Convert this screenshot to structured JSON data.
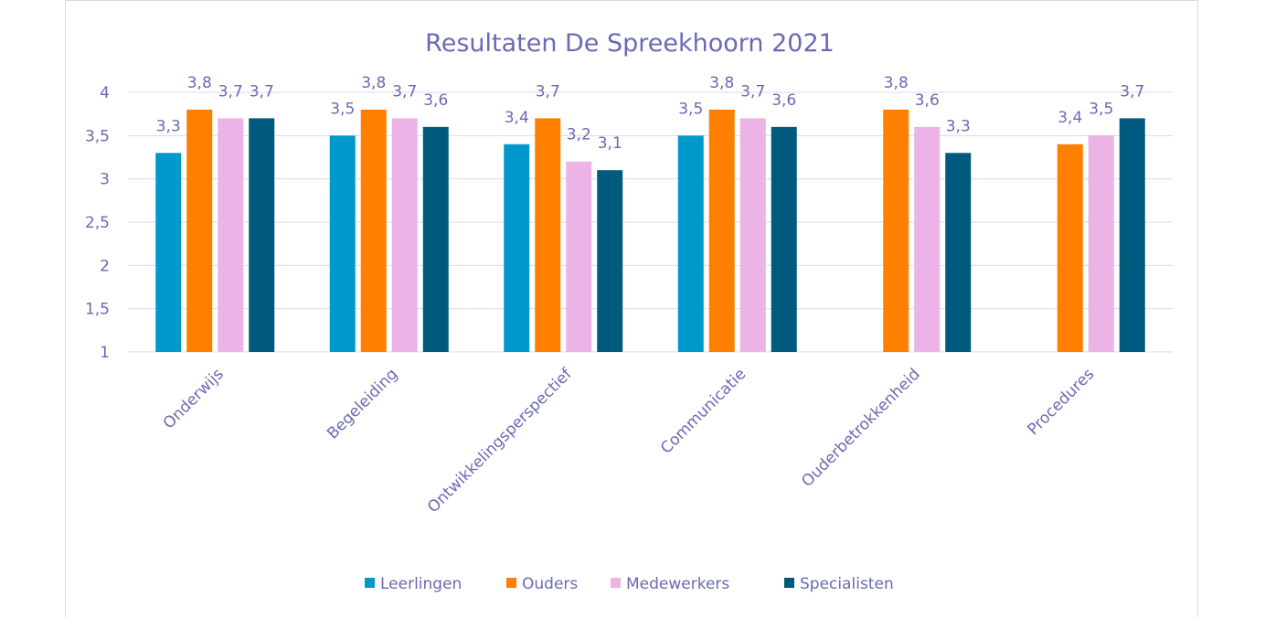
{
  "chart_data": {
    "type": "bar",
    "title": "Resultaten De Spreekhoorn 2021",
    "xlabel": "",
    "ylabel": "",
    "ylim": [
      1,
      4
    ],
    "yticks": [
      1,
      1.5,
      2,
      2.5,
      3,
      3.5,
      4
    ],
    "ytick_labels": [
      "1",
      "1,5",
      "2",
      "2,5",
      "3",
      "3,5",
      "4"
    ],
    "grid": true,
    "legend_position": "bottom",
    "categories": [
      "Onderwijs",
      "Begeleiding",
      "Ontwikkelingsperspectief",
      "Communicatie",
      "Ouderbetrokkenheid",
      "Procedures"
    ],
    "series": [
      {
        "name": "Leerlingen",
        "color": "#0099cc",
        "values": [
          3.3,
          3.5,
          3.4,
          3.5,
          null,
          null
        ],
        "labels": [
          "3,3",
          "3,5",
          "3,4",
          "3,5",
          "",
          ""
        ]
      },
      {
        "name": "Ouders",
        "color": "#ff7f00",
        "values": [
          3.8,
          3.8,
          3.7,
          3.8,
          3.8,
          3.4
        ],
        "labels": [
          "3,8",
          "3,8",
          "3,7",
          "3,8",
          "3,8",
          "3,4"
        ]
      },
      {
        "name": "Medewerkers",
        "color": "#ebb3e6",
        "values": [
          3.7,
          3.7,
          3.2,
          3.7,
          3.6,
          3.5
        ],
        "labels": [
          "3,7",
          "3,7",
          "3,2",
          "3,7",
          "3,6",
          "3,5"
        ]
      },
      {
        "name": "Specialisten",
        "color": "#005a7d",
        "values": [
          3.7,
          3.6,
          3.1,
          3.6,
          3.3,
          3.7
        ],
        "labels": [
          "3,7",
          "3,6",
          "3,1",
          "3,6",
          "3,3",
          "3,7"
        ]
      }
    ]
  }
}
